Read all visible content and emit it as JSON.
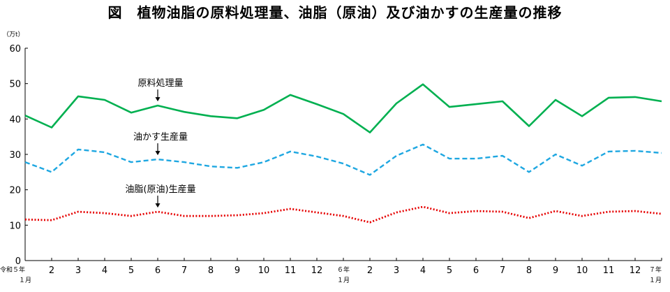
{
  "chart_data": {
    "type": "line",
    "title": "図　植物油脂の原料処理量、油脂（原油）及び油かすの生産量の推移",
    "ylabel": "（万t）",
    "ylim": [
      0,
      60
    ],
    "yticks": [
      0,
      10,
      20,
      30,
      40,
      50,
      60
    ],
    "grid": false,
    "categories": [
      "令和５年\n１月",
      "2",
      "3",
      "4",
      "5",
      "6",
      "7",
      "8",
      "9",
      "10",
      "11",
      "12",
      "６年\n１月",
      "2",
      "3",
      "4",
      "5",
      "6",
      "7",
      "8",
      "9",
      "10",
      "11",
      "12",
      "７年\n１月"
    ],
    "series": [
      {
        "name": "原料処理量",
        "color": "#00b050",
        "style": "solid",
        "values": [
          41.0,
          37.6,
          46.4,
          45.4,
          41.8,
          43.8,
          42.0,
          40.8,
          40.2,
          42.6,
          46.8,
          44.2,
          41.4,
          36.2,
          44.4,
          49.8,
          43.4,
          44.2,
          45.0,
          38.0,
          45.4,
          40.8,
          46.0,
          46.2,
          45.0
        ]
      },
      {
        "name": "油かす生産量",
        "color": "#1ea7e1",
        "style": "dashed",
        "values": [
          27.8,
          25.0,
          31.4,
          30.6,
          27.8,
          28.6,
          27.8,
          26.6,
          26.2,
          27.8,
          30.8,
          29.4,
          27.4,
          24.2,
          29.6,
          32.8,
          28.8,
          28.8,
          29.6,
          25.0,
          30.0,
          26.8,
          30.8,
          31.0,
          30.4
        ]
      },
      {
        "name": "油脂(原油)生産量",
        "color": "#e60000",
        "style": "dotted",
        "values": [
          11.6,
          11.4,
          13.8,
          13.4,
          12.6,
          13.8,
          12.6,
          12.6,
          12.8,
          13.4,
          14.6,
          13.6,
          12.6,
          10.8,
          13.6,
          15.2,
          13.4,
          14.0,
          13.8,
          12.0,
          14.0,
          12.6,
          13.8,
          14.0,
          13.2
        ]
      }
    ],
    "annotations": [
      {
        "text": "原料処理量",
        "series": 0,
        "at": 5
      },
      {
        "text": "油かす生産量",
        "series": 1,
        "at": 5
      },
      {
        "text": "油脂(原油)生産量",
        "series": 2,
        "at": 5
      }
    ]
  }
}
